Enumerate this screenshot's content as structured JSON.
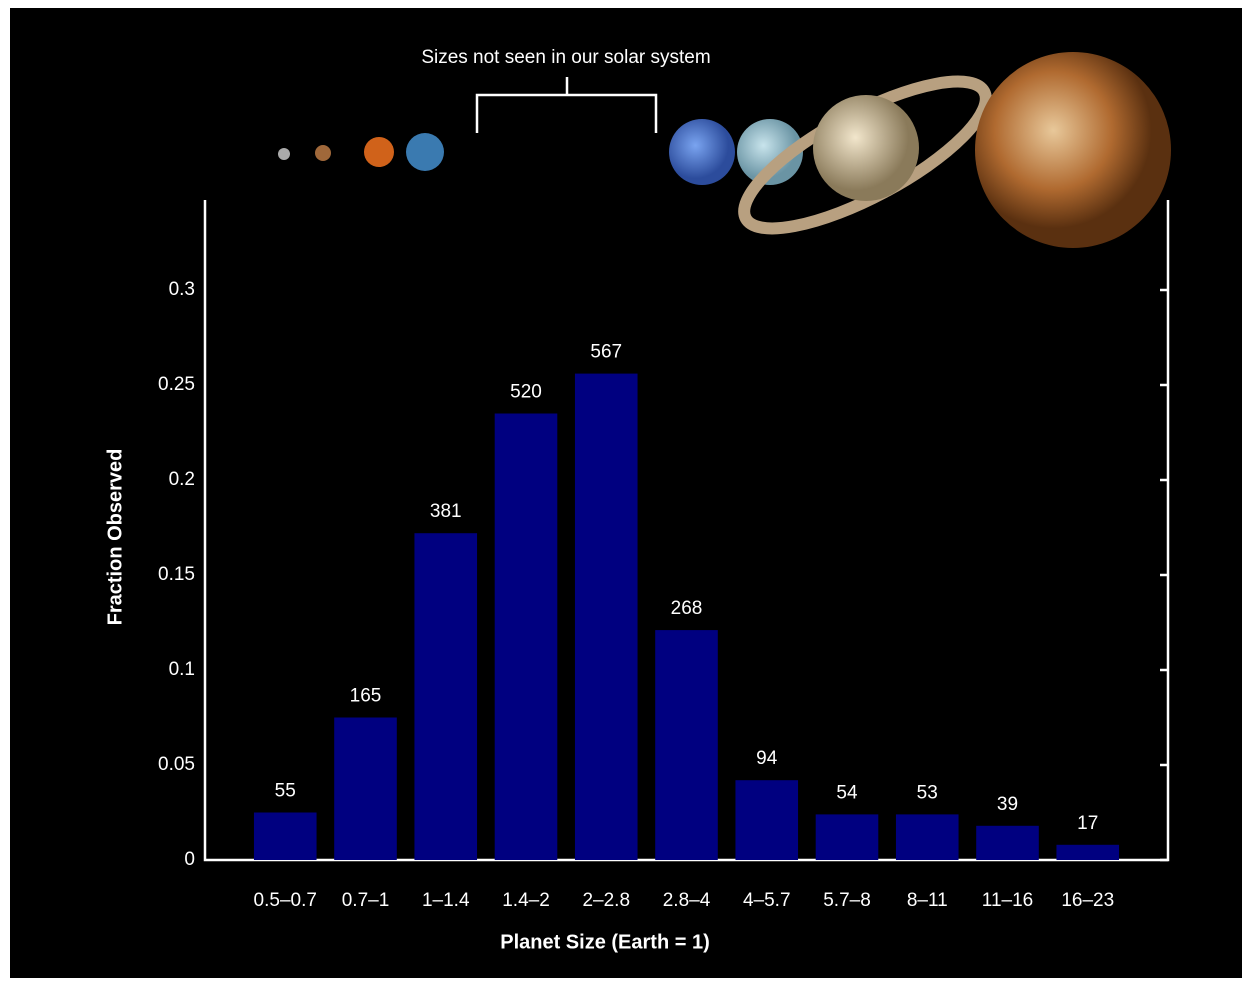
{
  "chart_data": {
    "type": "bar",
    "annotation": "Sizes not seen in our solar system",
    "x_label": "Planet Size (Earth = 1)",
    "y_label": "Fraction Observed",
    "categories": [
      "0.5–0.7",
      "0.7–1",
      "1–1.4",
      "1.4–2",
      "2–2.8",
      "2.8–4",
      "4–5.7",
      "5.7–8",
      "8–11",
      "11–16",
      "16–23"
    ],
    "values": [
      0.025,
      0.075,
      0.172,
      0.235,
      0.256,
      0.121,
      0.042,
      0.024,
      0.024,
      0.018,
      0.008
    ],
    "counts": [
      55,
      165,
      381,
      520,
      567,
      268,
      94,
      54,
      53,
      39,
      17
    ],
    "color": "#000080",
    "ylim": [
      0,
      0.35
    ],
    "yticks": [
      0,
      0.05,
      0.1,
      0.15,
      0.2,
      0.25,
      0.3
    ]
  }
}
